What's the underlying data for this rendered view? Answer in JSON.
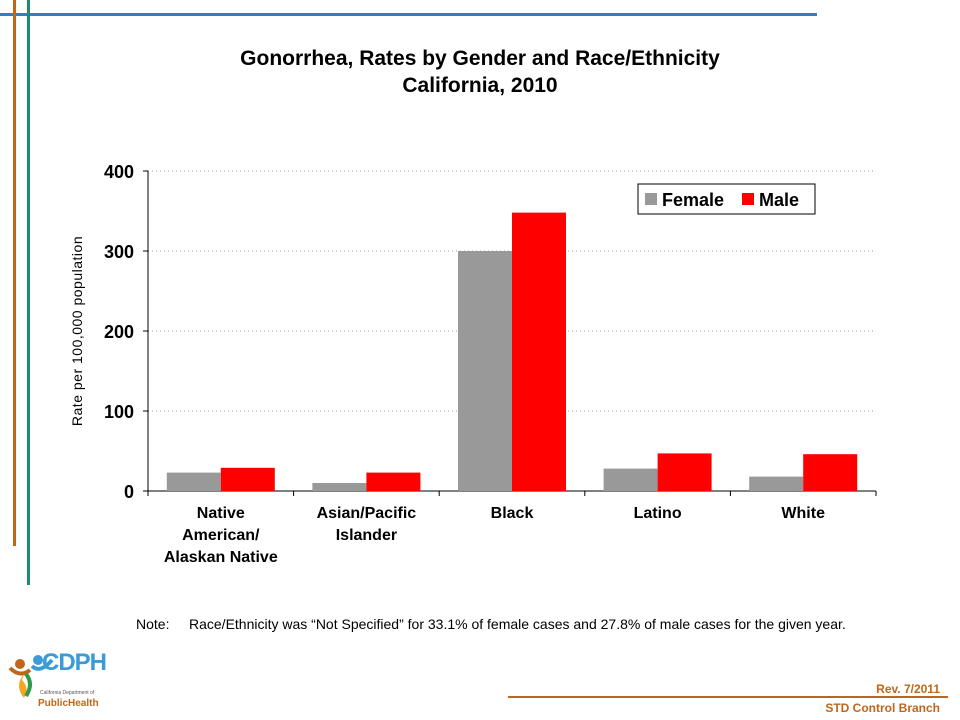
{
  "title_line1": "Gonorrhea, Rates by Gender and Race/Ethnicity",
  "title_line2": "California, 2010",
  "note_label": "Note:",
  "note_text": "Race/Ethnicity was “Not Specified” for 33.1% of female cases and 27.8% of male cases for the given year.",
  "revision": "Rev. 7/2011",
  "branch": "STD Control Branch",
  "logo": {
    "acronym": "CDPH",
    "subtitle": "California Department of",
    "name": "PublicHealth"
  },
  "colors": {
    "female": "#999999",
    "male": "#ff0000",
    "top_rule": "#2f7fd0",
    "accent_orange": "#c0661a",
    "accent_teal": "#1f8a7a"
  },
  "chart_data": {
    "type": "bar",
    "categories": [
      [
        "Native",
        "American/",
        "Alaskan Native"
      ],
      [
        "Asian/Pacific",
        "Islander"
      ],
      [
        "Black"
      ],
      [
        "Latino"
      ],
      [
        "White"
      ]
    ],
    "series": [
      {
        "name": "Female",
        "values": [
          23,
          10,
          300,
          28,
          18
        ]
      },
      {
        "name": "Male",
        "values": [
          29,
          23,
          348,
          47,
          46
        ]
      }
    ],
    "ylabel": "Rate per 100,000 population",
    "ylim": [
      0,
      400
    ],
    "yticks": [
      0,
      100,
      200,
      300,
      400
    ],
    "grid": true,
    "legend_position": "top-right"
  }
}
